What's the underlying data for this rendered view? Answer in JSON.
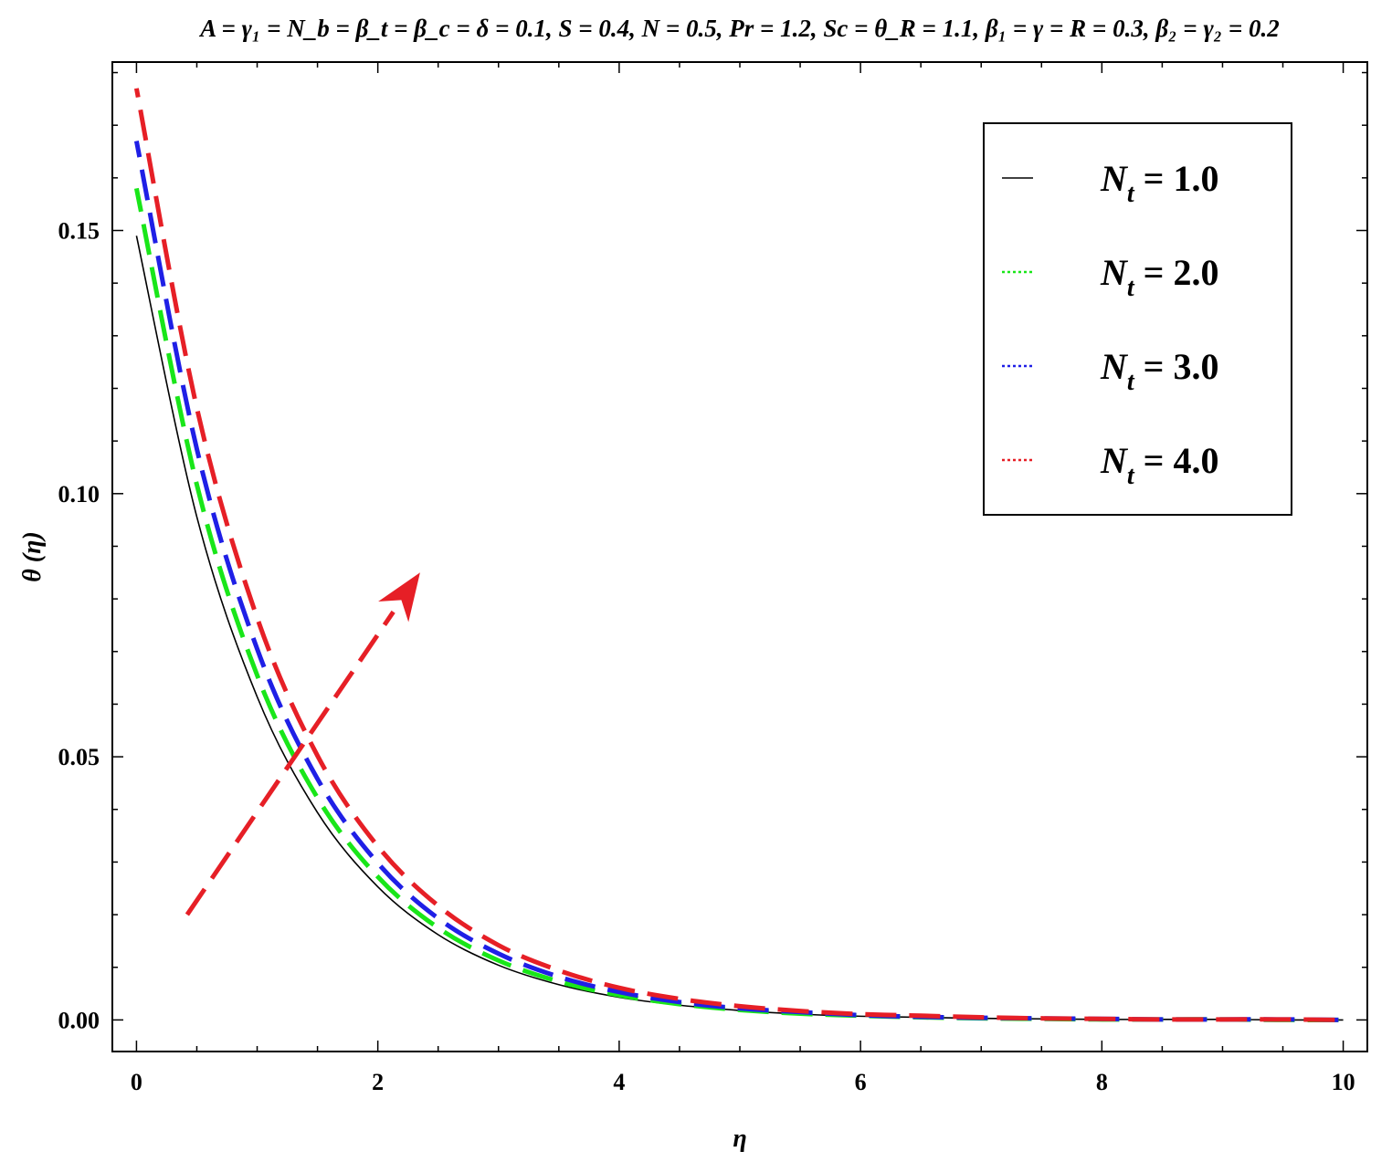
{
  "chart_data": {
    "type": "line",
    "title": "A = γ₁ = N_b = β_t = β_c = δ = 0.1, S = 0.4, N = 0.5, Pr = 1.2, Sc = θ_R = 1.1, β₁ = γ = R = 0.3, β₂ = γ₂ = 0.2",
    "xlabel": "η",
    "ylabel": "θ (η)",
    "xlim": [
      -0.2,
      10.2
    ],
    "ylim": [
      -0.006,
      0.182
    ],
    "xticks": [
      "0",
      "2",
      "4",
      "6",
      "8",
      "10"
    ],
    "yticks": [
      "0.00",
      "0.05",
      "0.10",
      "0.15"
    ],
    "legend_position": "top-right",
    "grid": false,
    "x": [
      0,
      0.5,
      1,
      1.5,
      2,
      2.5,
      3,
      3.5,
      4,
      4.5,
      5,
      5.5,
      6,
      6.5,
      7,
      7.5,
      8,
      8.5,
      9,
      9.5,
      10
    ],
    "series": [
      {
        "name": "N_t = 1.0",
        "label_sym": "N",
        "label_sub": "t",
        "label_val": " = 1.0",
        "color": "#000000",
        "style": "solid",
        "values": [
          0.149,
          0.0956,
          0.0614,
          0.0394,
          0.0253,
          0.0162,
          0.0104,
          0.0067,
          0.0043,
          0.0028,
          0.0018,
          0.0011,
          0.0007,
          0.0005,
          0.0003,
          0.0002,
          0.0001,
          0.0001,
          0.0001,
          0.0,
          0.0
        ]
      },
      {
        "name": "N_t = 2.0",
        "label_sym": "N",
        "label_sub": "t",
        "label_val": " = 2.0",
        "color": "#19e619",
        "style": "dashed",
        "values": [
          0.158,
          0.1017,
          0.0655,
          0.0422,
          0.0272,
          0.0175,
          0.0113,
          0.0073,
          0.0047,
          0.003,
          0.0019,
          0.0012,
          0.0008,
          0.0005,
          0.0003,
          0.0002,
          0.0001,
          0.0001,
          0.0001,
          0.0,
          0.0
        ]
      },
      {
        "name": "N_t = 3.0",
        "label_sym": "N",
        "label_sub": "t",
        "label_val": " = 3.0",
        "color": "#1f1fe6",
        "style": "dashed",
        "values": [
          0.167,
          0.1085,
          0.0705,
          0.0458,
          0.0298,
          0.0193,
          0.0126,
          0.0082,
          0.0053,
          0.0034,
          0.0022,
          0.0015,
          0.0009,
          0.0006,
          0.0004,
          0.0003,
          0.0002,
          0.0001,
          0.0001,
          0.0001,
          0.0
        ]
      },
      {
        "name": "N_t = 4.0",
        "label_sym": "N",
        "label_sub": "t",
        "label_val": " = 4.0",
        "color": "#e61f26",
        "style": "dashed",
        "values": [
          0.177,
          0.1163,
          0.0764,
          0.0502,
          0.033,
          0.0217,
          0.0142,
          0.0094,
          0.0061,
          0.004,
          0.0026,
          0.0017,
          0.0011,
          0.0008,
          0.0005,
          0.0003,
          0.0002,
          0.0001,
          0.0001,
          0.0001,
          0.0
        ]
      }
    ],
    "annotation": {
      "type": "arrow",
      "meaning": "increasing N_t",
      "color": "#e61f26",
      "from": [
        0.42,
        0.02
      ],
      "to": [
        2.35,
        0.085
      ]
    }
  }
}
